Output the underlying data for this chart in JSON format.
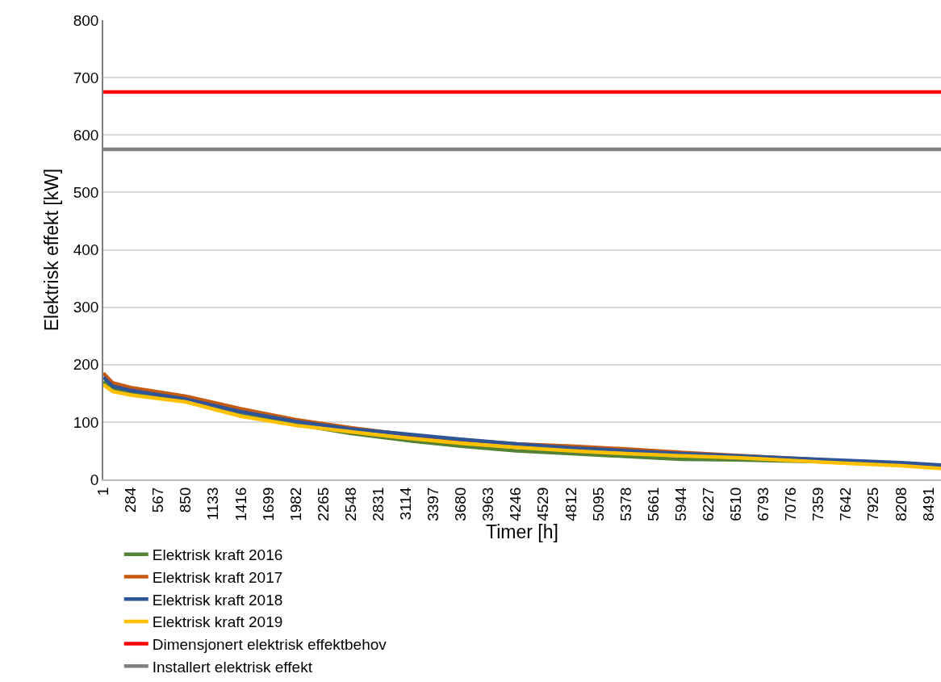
{
  "chart_data": {
    "type": "line",
    "xlabel": "Timer [h]",
    "ylabel": "Elektrisk effekt [kW]",
    "xlim": [
      1,
      8620
    ],
    "xticks": [
      1,
      284,
      567,
      850,
      1133,
      1416,
      1699,
      1982,
      2265,
      2548,
      2831,
      3114,
      3397,
      3680,
      3963,
      4246,
      4529,
      4812,
      5095,
      5378,
      5661,
      5944,
      6227,
      6510,
      6793,
      7076,
      7359,
      7642,
      7925,
      8208,
      8491
    ],
    "ylim": [
      0,
      800
    ],
    "yticks": [
      0,
      100,
      200,
      300,
      400,
      500,
      600,
      700,
      800
    ],
    "grid": "y",
    "legend": "bottom",
    "marker": "none",
    "line_style": "solid",
    "x": [
      1,
      100,
      284,
      850,
      1416,
      1982,
      2548,
      3114,
      3680,
      4246,
      4812,
      5378,
      5944,
      6510,
      7076,
      7642,
      8208,
      8620
    ],
    "series": [
      {
        "name": "Elektrisk kraft 2016",
        "color": "#548235",
        "values": [
          170,
          158,
          150,
          137,
          112,
          96,
          80,
          68,
          58,
          50,
          45,
          40,
          35,
          34,
          32,
          30,
          28,
          24
        ]
      },
      {
        "name": "Elektrisk kraft 2017",
        "color": "#c55a11",
        "values": [
          185,
          168,
          160,
          145,
          123,
          104,
          90,
          78,
          69,
          62,
          58,
          53,
          47,
          42,
          37,
          32,
          null,
          null
        ]
      },
      {
        "name": "Elektrisk kraft 2018",
        "color": "#2f5597",
        "values": [
          178,
          162,
          155,
          140,
          118,
          101,
          88,
          79,
          70,
          62,
          55,
          50,
          45,
          41,
          37,
          33,
          29,
          25
        ]
      },
      {
        "name": "Elektrisk kraft 2019",
        "color": "#ffc000",
        "values": [
          165,
          153,
          147,
          135,
          110,
          94,
          83,
          72,
          63,
          56,
          50,
          45,
          41,
          38,
          33,
          28,
          24,
          19
        ]
      }
    ],
    "ref_lines": [
      {
        "axis": "y",
        "value": 675,
        "label": "Dimensjonert elektrisk effektbehov",
        "color": "#ff0000"
      },
      {
        "axis": "y",
        "value": 575,
        "label": "Installert elektrisk effekt",
        "color": "#7f7f7f"
      }
    ]
  }
}
